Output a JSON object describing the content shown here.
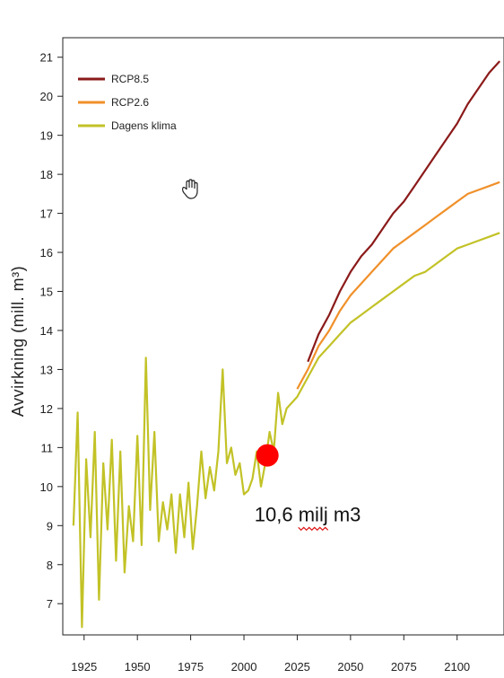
{
  "chart_data": {
    "type": "line",
    "title": "",
    "xlabel": "",
    "ylabel": "Avvirkning (mill. m³)",
    "xlim": [
      1915,
      2122
    ],
    "ylim": [
      6.2,
      21.5
    ],
    "x_ticks": [
      1925,
      1950,
      1975,
      2000,
      2025,
      2050,
      2075,
      2100
    ],
    "y_ticks": [
      7,
      8,
      9,
      10,
      11,
      12,
      13,
      14,
      15,
      16,
      17,
      18,
      19,
      20,
      21
    ],
    "grid": false,
    "legend_position": "top-left",
    "colors": {
      "rcp85": "#8b1a1a",
      "rcp26": "#f0902a",
      "dagens": "#c2c227",
      "marker": "#ff0000"
    },
    "series": [
      {
        "name": "RCP8.5",
        "color": "#8b1a1a",
        "x": [
          2030,
          2035,
          2040,
          2045,
          2050,
          2055,
          2060,
          2065,
          2070,
          2075,
          2080,
          2085,
          2090,
          2095,
          2100,
          2105,
          2110,
          2115,
          2120
        ],
        "y": [
          13.2,
          13.9,
          14.4,
          15.0,
          15.5,
          15.9,
          16.2,
          16.6,
          17.0,
          17.3,
          17.7,
          18.1,
          18.5,
          18.9,
          19.3,
          19.8,
          20.2,
          20.6,
          20.9
        ]
      },
      {
        "name": "RCP2.6",
        "color": "#f0902a",
        "x": [
          2025,
          2030,
          2035,
          2040,
          2045,
          2050,
          2055,
          2060,
          2065,
          2070,
          2075,
          2080,
          2085,
          2090,
          2095,
          2100,
          2105,
          2110,
          2115,
          2120
        ],
        "y": [
          12.5,
          13.0,
          13.6,
          14.0,
          14.5,
          14.9,
          15.2,
          15.5,
          15.8,
          16.1,
          16.3,
          16.5,
          16.7,
          16.9,
          17.1,
          17.3,
          17.5,
          17.6,
          17.7,
          17.8
        ]
      },
      {
        "name": "Dagens klima",
        "color": "#c2c227",
        "x": [
          1920,
          1922,
          1924,
          1926,
          1928,
          1930,
          1932,
          1934,
          1936,
          1938,
          1940,
          1942,
          1944,
          1946,
          1948,
          1950,
          1952,
          1954,
          1956,
          1958,
          1960,
          1962,
          1964,
          1966,
          1968,
          1970,
          1972,
          1974,
          1976,
          1978,
          1980,
          1982,
          1984,
          1986,
          1988,
          1990,
          1992,
          1994,
          1996,
          1998,
          2000,
          2002,
          2004,
          2006,
          2008,
          2010,
          2012,
          2014,
          2016,
          2018,
          2020,
          2025,
          2030,
          2035,
          2040,
          2045,
          2050,
          2055,
          2060,
          2065,
          2070,
          2075,
          2080,
          2085,
          2090,
          2095,
          2100,
          2105,
          2110,
          2115,
          2120
        ],
        "y": [
          9.0,
          11.9,
          6.4,
          10.7,
          8.7,
          11.4,
          7.1,
          10.6,
          8.9,
          11.2,
          8.1,
          10.9,
          7.8,
          9.5,
          8.6,
          11.3,
          8.5,
          13.3,
          9.4,
          11.4,
          8.6,
          9.6,
          8.9,
          9.8,
          8.3,
          9.8,
          8.7,
          10.1,
          8.4,
          9.5,
          10.9,
          9.7,
          10.5,
          9.9,
          10.9,
          13.0,
          10.6,
          11.0,
          10.3,
          10.6,
          9.8,
          9.9,
          10.2,
          10.9,
          10.0,
          10.6,
          11.4,
          10.9,
          12.4,
          11.6,
          12.0,
          12.3,
          12.8,
          13.3,
          13.6,
          13.9,
          14.2,
          14.4,
          14.6,
          14.8,
          15.0,
          15.2,
          15.4,
          15.5,
          15.7,
          15.9,
          16.1,
          16.2,
          16.3,
          16.4,
          16.5
        ]
      }
    ],
    "marker": {
      "x": 2011,
      "y": 10.8
    },
    "annotations": [
      {
        "text_main": "10,6 ",
        "text_wavy": "milj",
        "text_tail": " m3",
        "x": 2010,
        "y": 9.3
      }
    ]
  }
}
